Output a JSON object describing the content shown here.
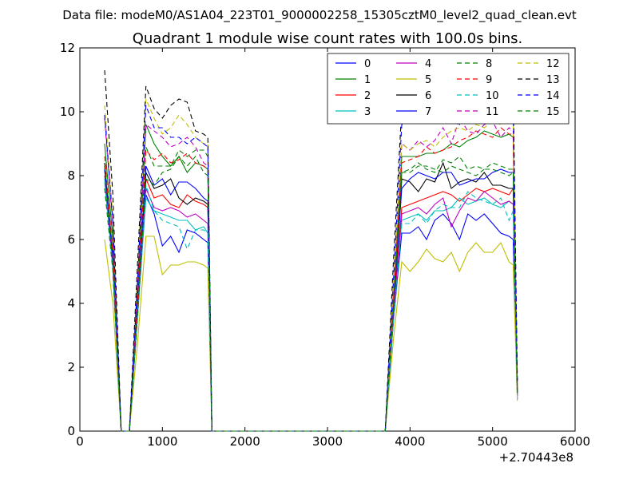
{
  "suptitle": "Data file: modeM0/AS1A04_223T01_9000002258_15305cztM0_level2_quad_clean.evt",
  "chart_data": {
    "type": "line",
    "title": "Quadrant 1 module wise count rates with 100.0s bins.",
    "xlabel": "",
    "ylabel": "",
    "x_offset_label": "+2.70443e8",
    "xlim": [
      0,
      6000
    ],
    "ylim": [
      0,
      12
    ],
    "xticks": [
      0,
      1000,
      2000,
      3000,
      4000,
      5000,
      6000
    ],
    "yticks": [
      0,
      2,
      4,
      6,
      8,
      10,
      12
    ],
    "grid": false,
    "legend": {
      "placement": "top-right",
      "columns": 4
    },
    "x": [
      300,
      400,
      500,
      600,
      700,
      800,
      900,
      1000,
      1100,
      1200,
      1300,
      1400,
      1500,
      1550,
      1600,
      1700,
      2000,
      2500,
      3000,
      3500,
      3700,
      3800,
      3900,
      4000,
      4100,
      4200,
      4300,
      4400,
      4500,
      4600,
      4700,
      4800,
      4900,
      5000,
      5100,
      5200,
      5250,
      5300
    ],
    "series": [
      {
        "name": "0",
        "color": "#0000ff",
        "dash": "solid",
        "values": [
          8.2,
          5.2,
          0,
          0,
          3.8,
          7.4,
          6.8,
          5.8,
          6.1,
          5.6,
          6.3,
          6.2,
          6.0,
          5.9,
          0,
          0,
          0,
          0,
          0,
          0,
          0,
          3.5,
          6.2,
          6.2,
          6.4,
          6.0,
          6.6,
          6.8,
          6.5,
          6.0,
          6.8,
          6.6,
          6.8,
          6.5,
          6.2,
          6.1,
          6.0,
          1.0
        ]
      },
      {
        "name": "1",
        "color": "#008000",
        "dash": "solid",
        "values": [
          9.0,
          6.0,
          0,
          0,
          4.2,
          9.6,
          9.0,
          8.6,
          8.3,
          8.6,
          8.1,
          8.4,
          8.3,
          8.2,
          0,
          0,
          0,
          0,
          0,
          0,
          0,
          4.2,
          8.6,
          8.6,
          8.6,
          8.7,
          8.7,
          8.8,
          9.0,
          8.9,
          9.1,
          9.2,
          9.4,
          9.3,
          9.2,
          9.3,
          9.2,
          1.2
        ]
      },
      {
        "name": "2",
        "color": "#ff0000",
        "dash": "solid",
        "values": [
          8.3,
          5.5,
          0,
          0,
          3.9,
          7.9,
          7.3,
          7.4,
          7.1,
          7.0,
          7.4,
          7.2,
          7.1,
          7.0,
          0,
          0,
          0,
          0,
          0,
          0,
          0,
          3.8,
          7.0,
          7.1,
          7.2,
          7.3,
          7.4,
          7.5,
          7.4,
          7.2,
          7.4,
          7.6,
          7.5,
          7.6,
          7.5,
          7.4,
          7.6,
          1.1
        ]
      },
      {
        "name": "3",
        "color": "#00bfbf",
        "dash": "solid",
        "values": [
          7.8,
          5.1,
          0,
          0,
          3.6,
          7.3,
          6.9,
          6.8,
          6.7,
          6.6,
          6.6,
          6.3,
          6.4,
          6.2,
          0,
          0,
          0,
          0,
          0,
          0,
          0,
          3.5,
          6.6,
          6.7,
          6.8,
          6.6,
          6.9,
          6.9,
          7.0,
          7.3,
          7.1,
          7.2,
          7.3,
          7.1,
          7.0,
          7.2,
          7.1,
          1.1
        ]
      },
      {
        "name": "4",
        "color": "#bf00bf",
        "dash": "solid",
        "values": [
          8.0,
          5.2,
          0,
          0,
          3.7,
          7.6,
          7.0,
          6.9,
          7.0,
          6.9,
          6.7,
          6.8,
          6.6,
          6.5,
          0,
          0,
          0,
          0,
          0,
          0,
          0,
          3.6,
          6.8,
          6.9,
          7.0,
          6.8,
          7.1,
          7.3,
          6.4,
          6.9,
          7.3,
          7.2,
          7.5,
          7.3,
          7.1,
          7.2,
          7.1,
          1.1
        ]
      },
      {
        "name": "5",
        "color": "#bfbf00",
        "dash": "solid",
        "values": [
          6.0,
          4.0,
          0,
          0,
          2.8,
          6.1,
          6.1,
          4.9,
          5.2,
          5.2,
          5.3,
          5.3,
          5.2,
          5.1,
          0,
          0,
          0,
          0,
          0,
          0,
          0,
          2.9,
          5.3,
          5.0,
          5.3,
          5.7,
          5.4,
          5.3,
          5.6,
          5.0,
          5.6,
          5.9,
          5.6,
          5.6,
          5.9,
          5.3,
          5.2,
          0.95
        ]
      },
      {
        "name": "6",
        "color": "#000000",
        "dash": "solid",
        "values": [
          8.4,
          5.5,
          0,
          0,
          4.0,
          8.1,
          7.6,
          7.7,
          7.9,
          7.3,
          7.1,
          7.3,
          7.2,
          7.1,
          0,
          0,
          0,
          0,
          0,
          0,
          0,
          4.0,
          7.9,
          7.8,
          7.5,
          7.9,
          7.8,
          8.4,
          7.6,
          7.8,
          7.9,
          7.8,
          8.1,
          7.7,
          7.7,
          7.6,
          7.6,
          1.2
        ]
      },
      {
        "name": "7",
        "color": "#0000ff",
        "dash": "solid",
        "values": [
          8.2,
          5.4,
          0,
          0,
          3.9,
          8.3,
          7.7,
          7.9,
          7.4,
          7.8,
          7.8,
          7.6,
          7.3,
          7.2,
          0,
          0,
          0,
          0,
          0,
          0,
          0,
          3.9,
          7.6,
          7.9,
          8.1,
          8.0,
          7.9,
          8.1,
          8.1,
          7.7,
          7.8,
          7.9,
          7.9,
          8.1,
          8.2,
          8.1,
          8.1,
          1.2
        ]
      },
      {
        "name": "8",
        "color": "#008000",
        "dash": "dashed",
        "values": [
          8.3,
          5.5,
          0,
          0,
          4.0,
          8.9,
          8.3,
          8.3,
          8.3,
          8.8,
          8.6,
          8.8,
          8.8,
          8.6,
          0,
          0,
          0,
          0,
          0,
          0,
          0,
          4.1,
          8.1,
          8.1,
          8.3,
          8.3,
          8.2,
          8.1,
          8.3,
          8.2,
          8.1,
          8.0,
          8.2,
          8.4,
          8.3,
          8.2,
          8.2,
          1.2
        ]
      },
      {
        "name": "9",
        "color": "#ff0000",
        "dash": "dashed",
        "values": [
          8.6,
          5.6,
          0,
          0,
          4.1,
          8.8,
          8.5,
          8.7,
          8.4,
          8.5,
          8.7,
          8.4,
          8.3,
          8.2,
          0,
          0,
          0,
          0,
          0,
          0,
          0,
          4.2,
          8.4,
          8.5,
          8.6,
          8.9,
          8.7,
          8.8,
          8.9,
          9.1,
          9.2,
          9.4,
          9.3,
          9.2,
          9.5,
          9.3,
          9.3,
          1.3
        ]
      },
      {
        "name": "10",
        "color": "#00bfbf",
        "dash": "dashed",
        "values": [
          7.9,
          5.1,
          0,
          0,
          3.7,
          7.7,
          6.9,
          6.6,
          6.5,
          6.4,
          5.7,
          6.3,
          6.3,
          6.2,
          0,
          0,
          0,
          0,
          0,
          0,
          0,
          3.5,
          6.5,
          6.5,
          6.8,
          6.5,
          6.9,
          7.1,
          7.0,
          7.0,
          7.5,
          7.3,
          7.2,
          7.1,
          7.3,
          6.6,
          6.9,
          1.1
        ]
      },
      {
        "name": "11",
        "color": "#bf00bf",
        "dash": "dashed",
        "values": [
          9.8,
          6.4,
          0,
          0,
          4.6,
          9.6,
          9.4,
          9.2,
          8.9,
          9.0,
          9.2,
          8.9,
          8.4,
          8.3,
          0,
          0,
          0,
          0,
          0,
          0,
          0,
          4.5,
          9.0,
          8.8,
          9.1,
          8.9,
          9.1,
          9.5,
          9.0,
          9.8,
          9.4,
          9.3,
          9.6,
          9.7,
          9.2,
          9.5,
          9.4,
          1.4
        ]
      },
      {
        "name": "12",
        "color": "#bfbf00",
        "dash": "dashed",
        "values": [
          10.2,
          6.7,
          0,
          0,
          4.9,
          10.4,
          9.8,
          9.3,
          9.5,
          9.9,
          9.6,
          9.2,
          9.0,
          9.0,
          0,
          0,
          0,
          0,
          0,
          0,
          0,
          4.6,
          9.0,
          8.8,
          9.0,
          9.1,
          8.9,
          9.2,
          9.4,
          9.5,
          9.4,
          9.6,
          9.5,
          9.7,
          9.6,
          9.8,
          9.7,
          1.4
        ]
      },
      {
        "name": "13",
        "color": "#000000",
        "dash": "dashed",
        "values": [
          11.3,
          7.4,
          0,
          0,
          5.3,
          10.8,
          10.1,
          9.8,
          10.2,
          10.4,
          10.3,
          9.4,
          9.3,
          9.2,
          0,
          0,
          0,
          0,
          0,
          0,
          0,
          5.4,
          10.1,
          10.2,
          10.4,
          10.3,
          10.4,
          10.6,
          10.5,
          10.6,
          10.7,
          10.6,
          10.9,
          10.9,
          10.8,
          10.9,
          10.8,
          1.6
        ]
      },
      {
        "name": "14",
        "color": "#0000ff",
        "dash": "dashed",
        "values": [
          9.9,
          6.5,
          0,
          0,
          4.7,
          10.2,
          9.5,
          9.5,
          9.2,
          9.2,
          9.0,
          9.2,
          9.0,
          8.9,
          0,
          0,
          0,
          0,
          0,
          0,
          0,
          4.8,
          9.6,
          9.7,
          10.0,
          9.9,
          10.2,
          10.3,
          10.1,
          9.6,
          9.9,
          10.4,
          10.4,
          10.5,
          10.3,
          10.4,
          10.3,
          1.5
        ]
      },
      {
        "name": "15",
        "color": "#008000",
        "dash": "dashed",
        "values": [
          7.6,
          5.0,
          0,
          0,
          3.6,
          7.9,
          7.7,
          8.1,
          8.2,
          8.6,
          8.3,
          8.6,
          8.1,
          8.0,
          0,
          0,
          0,
          0,
          0,
          0,
          0,
          3.9,
          8.1,
          8.2,
          8.4,
          8.2,
          8.1,
          8.5,
          8.4,
          8.6,
          8.2,
          8.3,
          8.2,
          8.2,
          8.1,
          8.0,
          8.1,
          1.2
        ]
      }
    ]
  }
}
